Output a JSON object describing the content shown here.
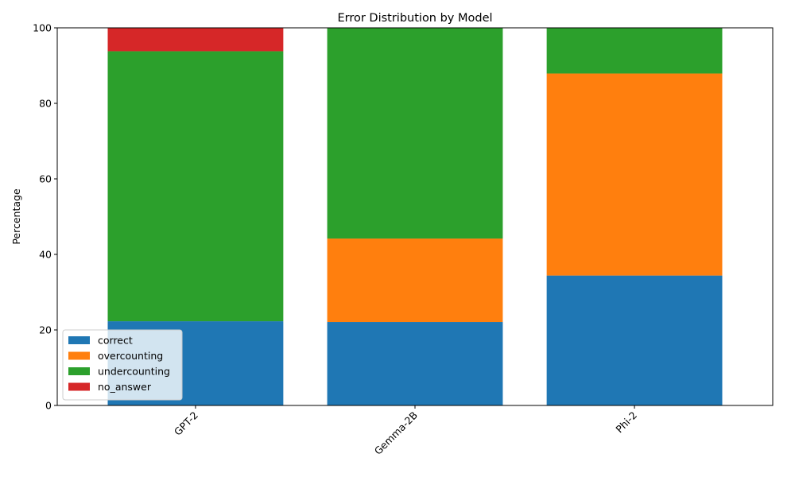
{
  "chart_data": {
    "type": "bar",
    "stacked": true,
    "title": "Error Distribution by Model",
    "xlabel": "",
    "ylabel": "Percentage",
    "ylim": [
      0,
      100
    ],
    "yticks": [
      0,
      20,
      40,
      60,
      80,
      100
    ],
    "categories": [
      "GPT-2",
      "Gemma-2B",
      "Phi-2"
    ],
    "series": [
      {
        "name": "correct",
        "color": "#1f77b4",
        "values": [
          22.3,
          22.1,
          34.4
        ]
      },
      {
        "name": "overcounting",
        "color": "#ff7f0e",
        "values": [
          0.0,
          22.1,
          53.5
        ]
      },
      {
        "name": "undercounting",
        "color": "#2ca02c",
        "values": [
          71.5,
          55.8,
          12.1
        ]
      },
      {
        "name": "no_answer",
        "color": "#d62728",
        "values": [
          6.2,
          0.0,
          0.0
        ]
      }
    ],
    "grid": false,
    "legend_position": "lower-left",
    "xtick_rotation": 45
  }
}
